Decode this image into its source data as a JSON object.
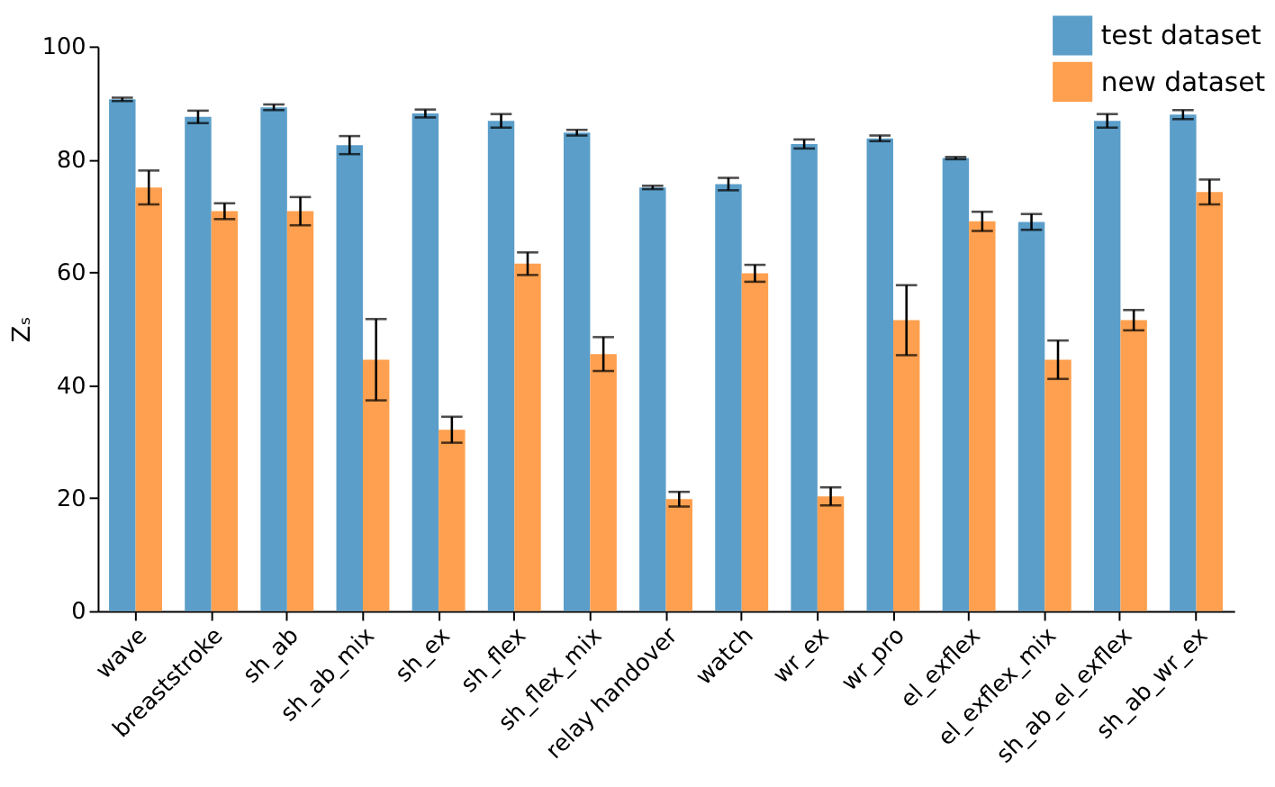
{
  "chart_data": {
    "type": "bar",
    "ylabel": "Zₛ",
    "categories": [
      "wave",
      "breaststroke",
      "sh_ab",
      "sh_ab_mix",
      "sh_ex",
      "sh_flex",
      "sh_flex_mix",
      "relay handover",
      "watch",
      "wr_ex",
      "wr_pro",
      "el_exflex",
      "el_exflex_mix",
      "sh_ab_el_exflex",
      "sh_ab_wr_ex"
    ],
    "series": [
      {
        "name": "test dataset",
        "color": "#5b9ec9",
        "values": [
          90.6,
          87.5,
          89.2,
          82.5,
          88.1,
          86.8,
          84.7,
          75.0,
          75.6,
          82.7,
          83.7,
          80.2,
          68.9,
          86.8,
          87.9
        ],
        "errors": [
          0.3,
          1.1,
          0.5,
          1.6,
          0.7,
          1.2,
          0.5,
          0.3,
          1.1,
          0.8,
          0.5,
          0.2,
          1.4,
          1.2,
          0.8
        ]
      },
      {
        "name": "new dataset",
        "color": "#fea04f",
        "values": [
          75.0,
          70.8,
          70.8,
          44.5,
          32.1,
          61.5,
          45.5,
          19.8,
          59.8,
          20.3,
          51.5,
          69.0,
          44.5,
          51.5,
          74.2
        ],
        "errors": [
          3.0,
          1.4,
          2.5,
          7.2,
          2.3,
          2.0,
          3.0,
          1.3,
          1.5,
          1.6,
          6.2,
          1.7,
          3.4,
          1.8,
          2.2
        ]
      }
    ],
    "ylim": [
      0,
      100
    ],
    "yticks": [
      0,
      20,
      40,
      60,
      80,
      100
    ],
    "grid": false,
    "legend": "top right"
  }
}
